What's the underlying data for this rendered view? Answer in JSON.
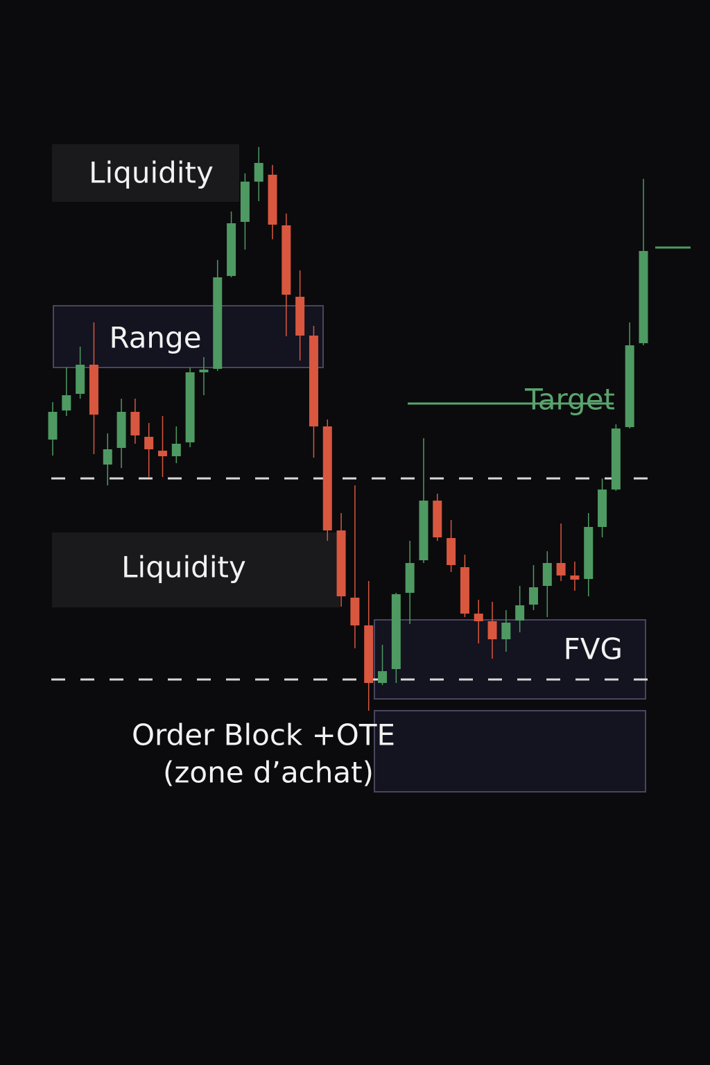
{
  "chart_data": {
    "type": "candlestick",
    "open": [
      56.6,
      60.8,
      63.2,
      67.4,
      53,
      55.4,
      60.6,
      57,
      55,
      54.2,
      56.2,
      66.3,
      66.8,
      80.2,
      88,
      93.8,
      94.8,
      87.5,
      77.2,
      71.6,
      58.5,
      43.5,
      33.8,
      29.8,
      21.5,
      23.5,
      34.5,
      39.2,
      47.8,
      42.4,
      38.2,
      31.5,
      30.4,
      27.8,
      30.5,
      32.8,
      35.5,
      38.8,
      37,
      36.5,
      44,
      49.4,
      58.4,
      70.5
    ],
    "high": [
      62,
      67,
      70,
      73.5,
      57.5,
      62.5,
      62.5,
      59,
      60,
      58.5,
      67,
      68.5,
      82.5,
      89.5,
      95,
      98.8,
      96.2,
      89.2,
      81,
      73,
      59.5,
      46,
      50,
      36.2,
      27,
      34.5,
      42,
      56.8,
      48.8,
      45,
      40,
      33.5,
      33.2,
      32,
      35.5,
      38.5,
      40.5,
      44.5,
      39,
      46,
      51,
      58.8,
      73.5,
      94.2
    ],
    "low": [
      54.3,
      60,
      62.5,
      54.5,
      50,
      52.5,
      56,
      51.2,
      51.2,
      53.2,
      55.5,
      63,
      66.5,
      80,
      84,
      91,
      85.5,
      71.5,
      68,
      54,
      42,
      32.5,
      26.5,
      17.5,
      21.2,
      21.5,
      30,
      38.8,
      42,
      37.5,
      31,
      27.2,
      25,
      26,
      28.8,
      32,
      31,
      36.2,
      34.8,
      34,
      42.5,
      49.2,
      58.2,
      70.2
    ],
    "close": [
      60.6,
      63,
      67.4,
      60.2,
      55.2,
      60.6,
      57.2,
      55.2,
      54.2,
      56,
      66.3,
      66.7,
      80,
      87.8,
      93.8,
      96.5,
      87.6,
      77.5,
      71.6,
      58.5,
      43.5,
      34,
      29.8,
      21.5,
      23.2,
      34.3,
      38.8,
      47.8,
      42.5,
      38.5,
      31.5,
      30.4,
      27.8,
      30.2,
      32.7,
      35.3,
      38.8,
      37,
      36.4,
      44,
      49.4,
      58.2,
      70.2,
      83.8
    ],
    "up_color": "#4e9a62",
    "down_color": "#d9573f",
    "ylim": [
      0,
      120
    ],
    "dashed_levels": [
      51,
      22
    ],
    "target_level": 61.8,
    "annotations": {
      "liquidity_top": "Liquidity",
      "range": "Range",
      "liquidity_bottom": "Liquidity",
      "fvg": "FVG",
      "order_block": "Order Block +OTE",
      "order_block_sub": "(zone d’achat)",
      "target": "Target"
    }
  }
}
